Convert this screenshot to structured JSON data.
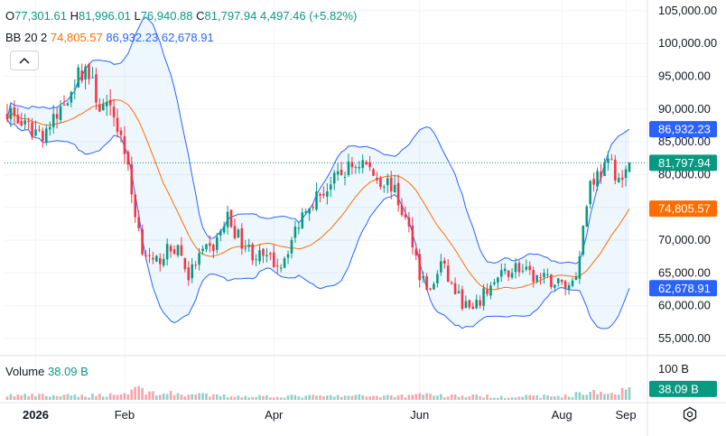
{
  "legend": {
    "o_label": "O",
    "o_value": "77,301.61",
    "h_label": "H",
    "h_value": "81,996.01",
    "l_label": "L",
    "l_value": "76,940.88",
    "c_label": "C",
    "c_value": "81,797.94",
    "change": "4,497.46 (+5.82%)",
    "bb_name": "BB",
    "bb_params": "20 2",
    "bb_basis": "74,805.57",
    "bb_upper": "86,932.23",
    "bb_lower": "62,678.91",
    "volume_label": "Volume",
    "volume_value": "38.09 B"
  },
  "colors": {
    "up": "#089981",
    "down": "#f23645",
    "basis": "#ff6d00",
    "band": "#2962ff",
    "band_fill": "#2196f3",
    "price_badge": "#089981"
  },
  "chart_data": {
    "type": "candlestick",
    "x_tick_labels": [
      "2026",
      "Feb",
      "Apr",
      "Jun",
      "Aug",
      "Sep"
    ],
    "x_tick_index": [
      8,
      33,
      75,
      116,
      156,
      174
    ],
    "y_tick_labels": [
      "105,000.00",
      "100,000.00",
      "95,000.00",
      "90,000.00",
      "85,000.00",
      "80,000.00",
      "75,000.00",
      "70,000.00",
      "65,000.00",
      "60,000.00",
      "55,000.00"
    ],
    "y_ticks": [
      105000,
      100000,
      95000,
      90000,
      85000,
      80000,
      75000,
      70000,
      65000,
      60000,
      55000
    ],
    "ylim": [
      52800,
      106500
    ],
    "badges": [
      {
        "label": "86,932.23",
        "value": 86932.23,
        "color": "#2962ff"
      },
      {
        "label": "81,797.94",
        "value": 81797.94,
        "color": "#089981"
      },
      {
        "label": "74,805.57",
        "value": 74805.57,
        "color": "#ff6d00"
      },
      {
        "label": "62,678.91",
        "value": 62678.91,
        "color": "#2962ff"
      }
    ],
    "last_close": 81797.94,
    "bands_last": {
      "upper": 86932.23,
      "basis": 74805.57,
      "lower": 62678.91
    },
    "volume_axis_label": "100 B",
    "volume_axis_value": 100,
    "volume_last_label": "38.09 B",
    "volume_last_value": 38.09,
    "close_path": [
      [
        0,
        90000
      ],
      [
        5,
        87000
      ],
      [
        10,
        86500
      ],
      [
        14,
        88500
      ],
      [
        18,
        93500
      ],
      [
        22,
        96500
      ],
      [
        26,
        90500
      ],
      [
        30,
        89000
      ],
      [
        33,
        84000
      ],
      [
        35,
        77000
      ],
      [
        38,
        69000
      ],
      [
        41,
        66000
      ],
      [
        44,
        68000
      ],
      [
        48,
        69000
      ],
      [
        51,
        64500
      ],
      [
        54,
        67500
      ],
      [
        58,
        69000
      ],
      [
        62,
        73500
      ],
      [
        65,
        70500
      ],
      [
        69,
        68000
      ],
      [
        73,
        67000
      ],
      [
        77,
        66500
      ],
      [
        80,
        70000
      ],
      [
        84,
        75500
      ],
      [
        88,
        77000
      ],
      [
        92,
        79000
      ],
      [
        96,
        81000
      ],
      [
        100,
        82000
      ],
      [
        104,
        79500
      ],
      [
        108,
        78500
      ],
      [
        111,
        74500
      ],
      [
        114,
        70000
      ],
      [
        116,
        65000
      ],
      [
        119,
        62000
      ],
      [
        122,
        66500
      ],
      [
        125,
        63000
      ],
      [
        128,
        60500
      ],
      [
        131,
        59000
      ],
      [
        135,
        62500
      ],
      [
        139,
        64500
      ],
      [
        143,
        66000
      ],
      [
        147,
        64500
      ],
      [
        151,
        64000
      ],
      [
        155,
        63500
      ],
      [
        158,
        63000
      ],
      [
        160,
        65000
      ],
      [
        162,
        72000
      ],
      [
        164,
        79000
      ],
      [
        167,
        80500
      ],
      [
        170,
        81500
      ],
      [
        173,
        78500
      ],
      [
        175,
        81800
      ]
    ],
    "volume_path": [
      [
        0,
        14
      ],
      [
        20,
        12
      ],
      [
        33,
        18
      ],
      [
        36,
        38
      ],
      [
        40,
        22
      ],
      [
        60,
        12
      ],
      [
        80,
        11
      ],
      [
        100,
        12
      ],
      [
        114,
        13
      ],
      [
        116,
        24
      ],
      [
        120,
        14
      ],
      [
        140,
        10
      ],
      [
        158,
        12
      ],
      [
        162,
        22
      ],
      [
        170,
        20
      ],
      [
        175,
        38.09
      ]
    ],
    "bar_count": 176
  }
}
